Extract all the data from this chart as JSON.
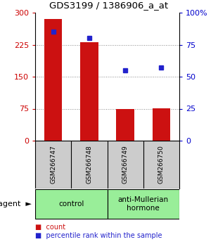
{
  "title": "GDS3199 / 1386906_a_at",
  "samples": [
    "GSM266747",
    "GSM266748",
    "GSM266749",
    "GSM266750"
  ],
  "counts": [
    285,
    230,
    75,
    76
  ],
  "percentiles": [
    85,
    80,
    55,
    57
  ],
  "bar_color": "#cc1111",
  "dot_color": "#2222cc",
  "left_yticks": [
    0,
    75,
    150,
    225,
    300
  ],
  "left_ylim": [
    0,
    300
  ],
  "right_yticks": [
    0,
    25,
    50,
    75,
    100
  ],
  "right_ylim": [
    0,
    100
  ],
  "right_yticklabels": [
    "0",
    "25",
    "50",
    "75",
    "100%"
  ],
  "groups": [
    {
      "label": "control",
      "indices": [
        0,
        1
      ],
      "color": "#99ee99"
    },
    {
      "label": "anti-Mullerian\nhormone",
      "indices": [
        2,
        3
      ],
      "color": "#99ee99"
    }
  ],
  "legend_items": [
    {
      "label": "count",
      "color": "#cc1111"
    },
    {
      "label": "percentile rank within the sample",
      "color": "#2222cc"
    }
  ],
  "background_color": "#ffffff",
  "plot_bg_color": "#ffffff",
  "grid_color": "#888888",
  "tick_label_color_left": "#cc0000",
  "tick_label_color_right": "#0000cc",
  "sample_bg_color": "#cccccc",
  "bar_width": 0.5
}
